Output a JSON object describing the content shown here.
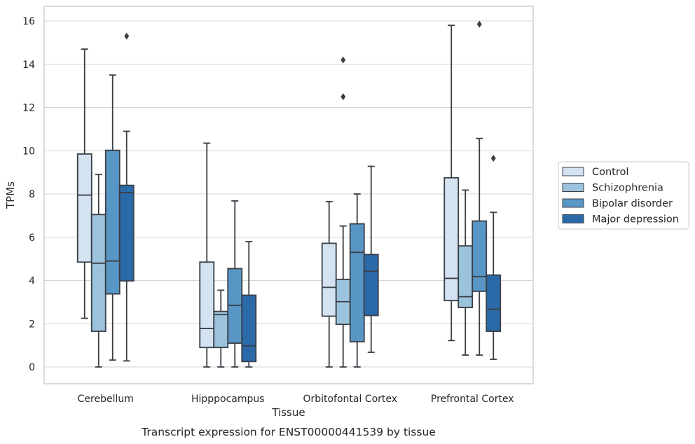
{
  "chart_data": {
    "type": "box",
    "title": "",
    "caption": "Transcript expression for ENST00000441539 by tissue",
    "xlabel": "Tissue",
    "ylabel": "TPMs",
    "ylim": [
      -0.75,
      16.65
    ],
    "yticks": [
      0,
      2,
      4,
      6,
      8,
      10,
      12,
      14,
      16
    ],
    "grid": "horizontal",
    "legend_position": "right",
    "categories": [
      "Cerebellum",
      "Hipppocampus",
      "Orbitofontal Cortex",
      "Prefrontal Cortex"
    ],
    "series": [
      {
        "name": "Control",
        "color": "#d4e3f2",
        "boxes": [
          {
            "whislo": 2.25,
            "q1": 4.85,
            "med": 7.95,
            "q3": 9.85,
            "whishi": 14.7,
            "fliers": []
          },
          {
            "whislo": 0.0,
            "q1": 0.9,
            "med": 1.78,
            "q3": 4.85,
            "whishi": 10.35,
            "fliers": []
          },
          {
            "whislo": 0.0,
            "q1": 2.35,
            "med": 3.68,
            "q3": 5.72,
            "whishi": 7.65,
            "fliers": []
          },
          {
            "whislo": 1.22,
            "q1": 3.07,
            "med": 4.1,
            "q3": 8.75,
            "whishi": 15.8,
            "fliers": []
          }
        ]
      },
      {
        "name": "Schizophrenia",
        "color": "#9cc3de",
        "boxes": [
          {
            "whislo": 0.0,
            "q1": 1.65,
            "med": 4.8,
            "q3": 7.05,
            "whishi": 8.9,
            "fliers": []
          },
          {
            "whislo": 0.0,
            "q1": 0.9,
            "med": 2.42,
            "q3": 2.57,
            "whishi": 3.55,
            "fliers": []
          },
          {
            "whislo": 0.0,
            "q1": 1.97,
            "med": 3.02,
            "q3": 4.05,
            "whishi": 6.52,
            "fliers": [
              14.2,
              12.5
            ]
          },
          {
            "whislo": 0.55,
            "q1": 2.75,
            "med": 3.25,
            "q3": 5.6,
            "whishi": 8.18,
            "fliers": []
          }
        ]
      },
      {
        "name": "Bipolar disorder",
        "color": "#5897c5",
        "boxes": [
          {
            "whislo": 0.32,
            "q1": 3.38,
            "med": 4.9,
            "q3": 10.02,
            "whishi": 13.5,
            "fliers": []
          },
          {
            "whislo": 0.0,
            "q1": 1.1,
            "med": 2.85,
            "q3": 4.55,
            "whishi": 7.68,
            "fliers": []
          },
          {
            "whislo": 0.0,
            "q1": 1.17,
            "med": 5.3,
            "q3": 6.62,
            "whishi": 8.0,
            "fliers": []
          },
          {
            "whislo": 0.55,
            "q1": 3.5,
            "med": 4.18,
            "q3": 6.75,
            "whishi": 10.57,
            "fliers": [
              15.85
            ]
          }
        ]
      },
      {
        "name": "Major depression",
        "color": "#2b6aa8",
        "boxes": [
          {
            "whislo": 0.28,
            "q1": 3.98,
            "med": 8.07,
            "q3": 8.4,
            "whishi": 10.9,
            "fliers": [
              15.3
            ]
          },
          {
            "whislo": 0.0,
            "q1": 0.25,
            "med": 0.98,
            "q3": 3.32,
            "whishi": 5.8,
            "fliers": []
          },
          {
            "whislo": 0.68,
            "q1": 2.38,
            "med": 4.42,
            "q3": 5.2,
            "whishi": 9.28,
            "fliers": []
          },
          {
            "whislo": 0.35,
            "q1": 1.65,
            "med": 2.67,
            "q3": 4.25,
            "whishi": 7.15,
            "fliers": [
              9.65
            ]
          }
        ]
      }
    ]
  },
  "colors": {
    "grid": "#d6d6d6",
    "frame": "#c8c8c8",
    "box_edge": "#3b3f46",
    "text": "#262626"
  }
}
